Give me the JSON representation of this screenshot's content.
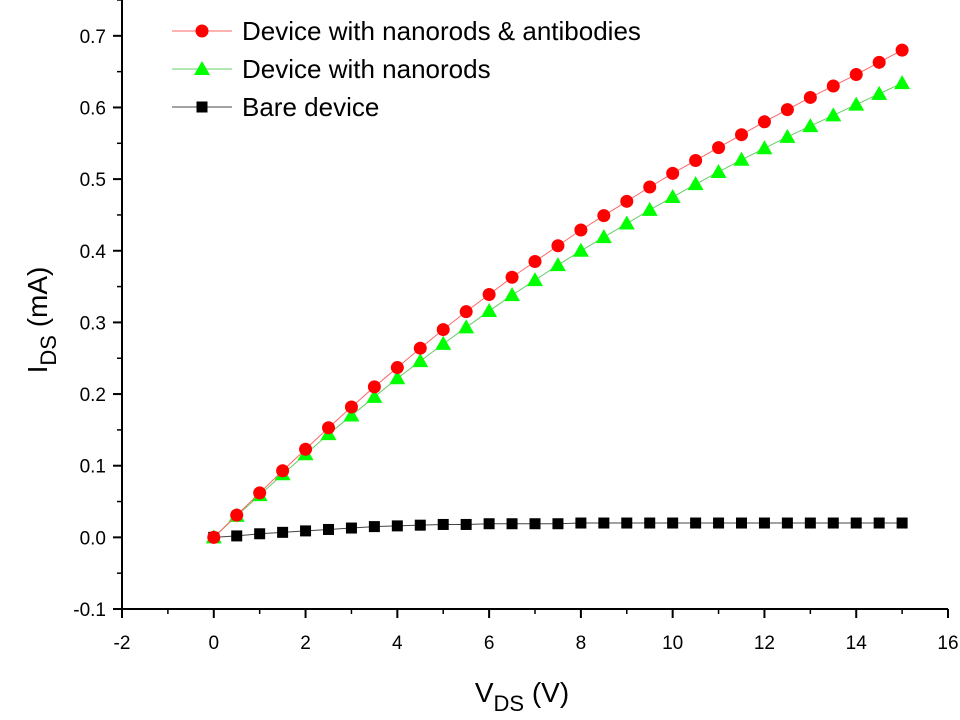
{
  "chart_data": {
    "type": "scatter",
    "title": "",
    "xlabel": {
      "main": "V",
      "sub": "DS",
      "unit": " (V)"
    },
    "ylabel": {
      "main": "I",
      "sub": "DS",
      "unit": " (mA)"
    },
    "xlim": [
      -2,
      16
    ],
    "ylim": [
      -0.1,
      0.75
    ],
    "xticks": [
      -2,
      0,
      2,
      4,
      6,
      8,
      10,
      12,
      14,
      16
    ],
    "yticks": [
      -0.1,
      0.0,
      0.1,
      0.2,
      0.3,
      0.4,
      0.5,
      0.6,
      0.7
    ],
    "ytick_labels": [
      "-0.1",
      "0.0",
      "0.1",
      "0.2",
      "0.3",
      "0.4",
      "0.5",
      "0.6",
      "0.7"
    ],
    "grid": false,
    "legend_position": "top-left",
    "x": [
      0,
      0.5,
      1,
      1.5,
      2,
      2.5,
      3,
      3.5,
      4,
      4.5,
      5,
      5.5,
      6,
      6.5,
      7,
      7.5,
      8,
      8.5,
      9,
      9.5,
      10,
      10.5,
      11,
      11.5,
      12,
      12.5,
      13,
      13.5,
      14,
      14.5,
      15
    ],
    "series": [
      {
        "name": "Device with nanorods & antibodies",
        "marker": "circle",
        "color": "#ff0000",
        "line_color": "#ff6666",
        "values": [
          0.0,
          0.031,
          0.062,
          0.093,
          0.123,
          0.153,
          0.182,
          0.21,
          0.237,
          0.264,
          0.29,
          0.315,
          0.339,
          0.363,
          0.385,
          0.407,
          0.429,
          0.449,
          0.469,
          0.489,
          0.508,
          0.526,
          0.544,
          0.562,
          0.58,
          0.597,
          0.614,
          0.63,
          0.646,
          0.663,
          0.68
        ]
      },
      {
        "name": "Device with nanorods",
        "marker": "triangle",
        "color": "#00ff00",
        "line_color": "#66cc66",
        "values": [
          0.0,
          0.03,
          0.059,
          0.088,
          0.116,
          0.144,
          0.17,
          0.196,
          0.222,
          0.246,
          0.27,
          0.293,
          0.316,
          0.338,
          0.359,
          0.38,
          0.4,
          0.419,
          0.438,
          0.457,
          0.475,
          0.493,
          0.51,
          0.527,
          0.543,
          0.559,
          0.574,
          0.589,
          0.604,
          0.619,
          0.634
        ]
      },
      {
        "name": "Bare device",
        "marker": "square",
        "color": "#000000",
        "line_color": "#444444",
        "values": [
          0.0,
          0.002,
          0.005,
          0.007,
          0.009,
          0.011,
          0.013,
          0.015,
          0.016,
          0.017,
          0.018,
          0.018,
          0.019,
          0.019,
          0.019,
          0.019,
          0.02,
          0.02,
          0.02,
          0.02,
          0.02,
          0.02,
          0.02,
          0.02,
          0.02,
          0.02,
          0.02,
          0.02,
          0.02,
          0.02,
          0.02
        ]
      }
    ]
  }
}
